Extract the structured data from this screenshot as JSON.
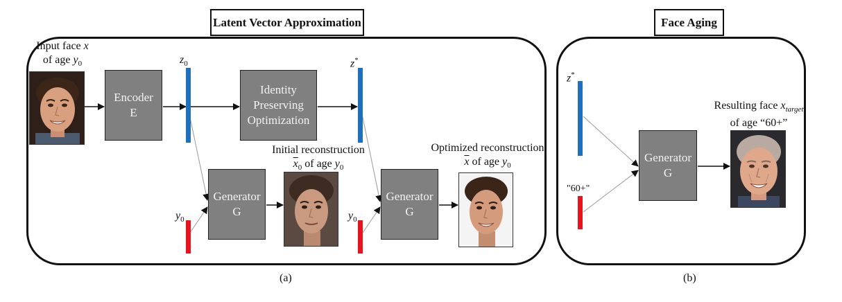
{
  "panel_a": {
    "title": "Latent Vector Approximation",
    "caption": "(a)",
    "input_label_line1_text": "Input face ",
    "input_label_line1_var": "x",
    "input_label_line2_text": "of age ",
    "input_label_line2_var": "y",
    "input_label_line2_sub": "0",
    "encoder_line1": "Encoder",
    "encoder_line2": "E",
    "z0_var": "z",
    "z0_sub": "0",
    "optim_line1": "Identity",
    "optim_line2": "Preserving",
    "optim_line3": "Optimization",
    "zstar_var": "z",
    "zstar_sup": "*",
    "y0_left_var": "y",
    "y0_left_sub": "0",
    "gen1_line1": "Generator",
    "gen1_line2": "G",
    "initial_line1": "Initial reconstruction",
    "initial_line2_var": "x",
    "initial_line2_sub": "0",
    "initial_line2_text": " of age ",
    "initial_line2_agevar": "y",
    "initial_line2_agesub": "0",
    "y0_right_var": "y",
    "y0_right_sub": "0",
    "gen2_line1": "Generator",
    "gen2_line2": "G",
    "optimized_line1": "Optimized reconstruction",
    "optimized_line2_var": "x",
    "optimized_line2_text": " of age ",
    "optimized_line2_agevar": "y",
    "optimized_line2_agesub": "0"
  },
  "panel_b": {
    "title": "Face Aging",
    "caption": "(b)",
    "zstar_var": "z",
    "zstar_sup": "*",
    "age_label": "\"60+\"",
    "gen_line1": "Generator",
    "gen_line2": "G",
    "result_line1_text": "Resulting face ",
    "result_line1_var": "x",
    "result_line1_sub": "target",
    "result_line2": "of age “60+”"
  },
  "colors": {
    "latent_bar": "#1f6fbf",
    "age_bar": "#e8141d",
    "block_fill": "#808080"
  }
}
